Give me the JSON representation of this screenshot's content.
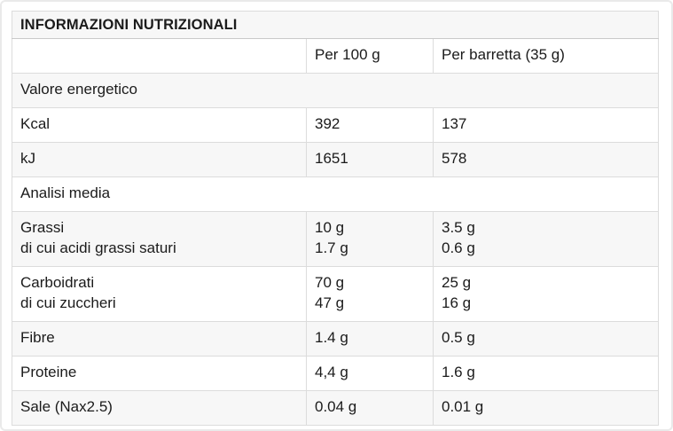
{
  "colors": {
    "page_background": "#ffffff",
    "page_border": "#eaeaea",
    "row_stripe": "#f7f7f7",
    "cell_border": "#dcdcdc",
    "table_border": "#c9c9c9",
    "text": "#1b1b1b"
  },
  "table": {
    "title": "INFORMAZIONI NUTRIZIONALI",
    "columns": [
      "",
      "Per 100 g",
      "Per barretta (35 g)"
    ],
    "rows": [
      {
        "type": "section",
        "label": "Valore energetico"
      },
      {
        "type": "data",
        "label": "Kcal",
        "per_100g": "392",
        "per_barretta": "137"
      },
      {
        "type": "data",
        "label": "kJ",
        "per_100g": "1651",
        "per_barretta": "578"
      },
      {
        "type": "section",
        "label": "Analisi media"
      },
      {
        "type": "data",
        "label": "Grassi\ndi cui acidi grassi saturi",
        "per_100g": "10 g\n1.7 g",
        "per_barretta": "3.5 g\n0.6 g"
      },
      {
        "type": "data",
        "label": "Carboidrati\ndi cui zuccheri",
        "per_100g": "70 g\n47 g",
        "per_barretta": "25 g\n16 g"
      },
      {
        "type": "data",
        "label": "Fibre",
        "per_100g": "1.4 g",
        "per_barretta": "0.5 g"
      },
      {
        "type": "data",
        "label": "Proteine",
        "per_100g": "4,4 g",
        "per_barretta": "1.6 g"
      },
      {
        "type": "data",
        "label": "Sale (Nax2.5)",
        "per_100g": "0.04 g",
        "per_barretta": "0.01 g"
      }
    ]
  },
  "chart_data": {
    "type": "table",
    "title": "INFORMAZIONI NUTRIZIONALI",
    "columns": [
      "",
      "Per 100 g",
      "Per barretta (35 g)"
    ],
    "rows": [
      [
        "Valore energetico",
        "",
        ""
      ],
      [
        "Kcal",
        "392",
        "137"
      ],
      [
        "kJ",
        "1651",
        "578"
      ],
      [
        "Analisi media",
        "",
        ""
      ],
      [
        "Grassi",
        "10 g",
        "3.5 g"
      ],
      [
        "di cui acidi grassi saturi",
        "1.7 g",
        "0.6 g"
      ],
      [
        "Carboidrati",
        "70 g",
        "25 g"
      ],
      [
        "di cui zuccheri",
        "47 g",
        "16 g"
      ],
      [
        "Fibre",
        "1.4 g",
        "0.5 g"
      ],
      [
        "Proteine",
        "4,4 g",
        "1.6 g"
      ],
      [
        "Sale (Nax2.5)",
        "0.04 g",
        "0.01 g"
      ]
    ]
  }
}
